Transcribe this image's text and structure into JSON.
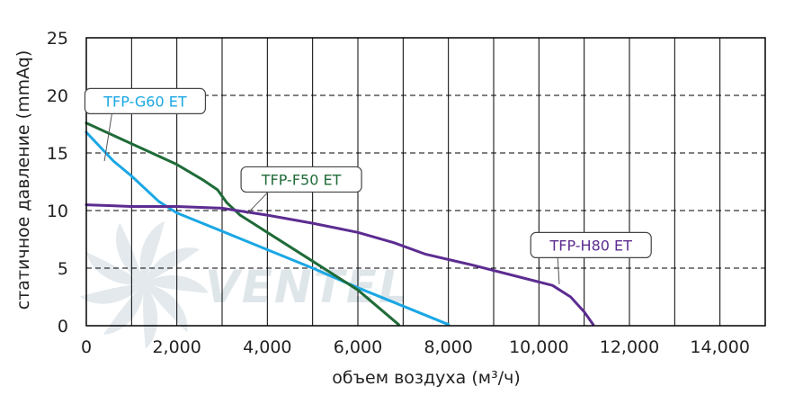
{
  "watermark": {
    "text": "VENTEL"
  },
  "chart_data": {
    "type": "line",
    "title": "",
    "xlabel": "объем воздуха (м³/ч)",
    "ylabel": "статичное давление (mmAq)",
    "xlim": [
      0,
      15000
    ],
    "ylim": [
      0,
      25
    ],
    "x_ticks": [
      0,
      2000,
      4000,
      6000,
      8000,
      10000,
      12000,
      14000
    ],
    "x_tick_labels": [
      "0",
      "2,000",
      "4,000",
      "6,000",
      "8,000",
      "10,000",
      "12,000",
      "14,000"
    ],
    "y_ticks": [
      0,
      5,
      10,
      15,
      20,
      25
    ],
    "y_tick_labels": [
      "0",
      "5",
      "10",
      "15",
      "20",
      "25"
    ],
    "grid": {
      "vertical": true,
      "horizontal": "dashed"
    },
    "series": [
      {
        "name": "TFP-G60 ET",
        "color": "#1aa7e4",
        "points": [
          [
            0,
            16.8
          ],
          [
            600,
            14.3
          ],
          [
            1000,
            13.0
          ],
          [
            1600,
            10.8
          ],
          [
            2000,
            9.8
          ],
          [
            3000,
            8.2
          ],
          [
            4000,
            6.6
          ],
          [
            5000,
            5.0
          ],
          [
            6000,
            3.3
          ],
          [
            7000,
            1.7
          ],
          [
            8000,
            0.1
          ]
        ]
      },
      {
        "name": "TFP-F50 ET",
        "color": "#1f6b38",
        "points": [
          [
            0,
            17.6
          ],
          [
            1000,
            15.8
          ],
          [
            2000,
            14.0
          ],
          [
            2600,
            12.6
          ],
          [
            2900,
            11.8
          ],
          [
            3100,
            10.7
          ],
          [
            3400,
            9.6
          ],
          [
            4000,
            8.1
          ],
          [
            5000,
            5.6
          ],
          [
            6000,
            3.1
          ],
          [
            6900,
            0.1
          ]
        ]
      },
      {
        "name": "TFP-H80 ET",
        "color": "#5c2c91",
        "points": [
          [
            0,
            10.5
          ],
          [
            1000,
            10.35
          ],
          [
            2000,
            10.35
          ],
          [
            3000,
            10.2
          ],
          [
            4000,
            9.6
          ],
          [
            5000,
            8.9
          ],
          [
            6000,
            8.1
          ],
          [
            6800,
            7.2
          ],
          [
            7500,
            6.2
          ],
          [
            8500,
            5.3
          ],
          [
            9500,
            4.3
          ],
          [
            10300,
            3.5
          ],
          [
            10700,
            2.5
          ],
          [
            11000,
            1.2
          ],
          [
            11200,
            0.1
          ]
        ]
      }
    ],
    "annotations": [
      {
        "text": "TFP-G60 ET",
        "series": 0,
        "box_at": [
          1300,
          19.5
        ],
        "anchor": [
          400,
          14.3
        ],
        "text_color": "#1aa7e4"
      },
      {
        "text": "TFP-F50 ET",
        "series": 1,
        "box_at": [
          4750,
          12.7
        ],
        "anchor": [
          3550,
          9.7
        ],
        "text_color": "#1f6b38"
      },
      {
        "text": "TFP-H80 ET",
        "series": 2,
        "box_at": [
          11150,
          7.0
        ],
        "anchor": [
          10450,
          3.6
        ],
        "text_color": "#5c2c91"
      }
    ]
  }
}
